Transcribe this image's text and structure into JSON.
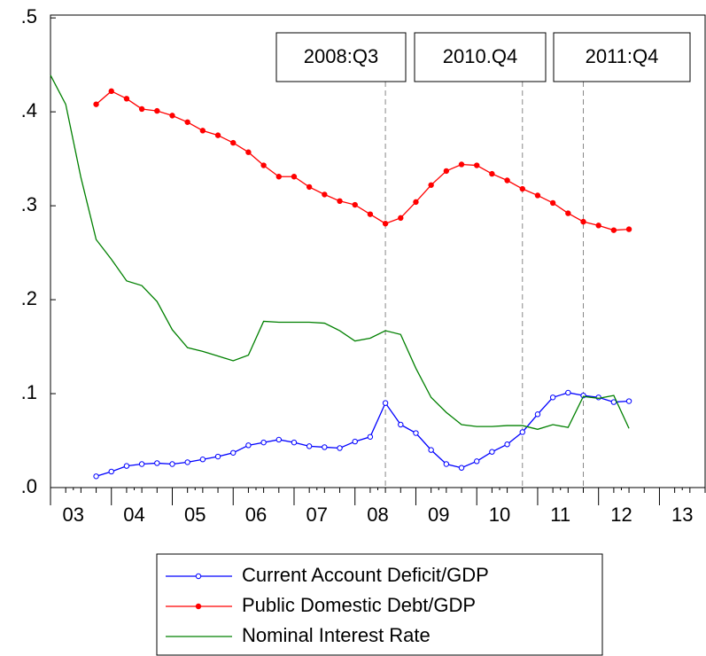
{
  "chart_data": {
    "type": "line",
    "x": [
      2003,
      2003.25,
      2003.5,
      2003.75,
      2004,
      2004.25,
      2004.5,
      2004.75,
      2005,
      2005.25,
      2005.5,
      2005.75,
      2006,
      2006.25,
      2006.5,
      2006.75,
      2007,
      2007.25,
      2007.5,
      2007.75,
      2008,
      2008.25,
      2008.5,
      2008.75,
      2009,
      2009.25,
      2009.5,
      2009.75,
      2010,
      2010.25,
      2010.5,
      2010.75,
      2011,
      2011.25,
      2011.5,
      2011.75,
      2012,
      2012.25,
      2012.5,
      2012.75
    ],
    "series": [
      {
        "name": "Current Account Deficit/GDP",
        "color": "#0000ff",
        "marker": "open",
        "values": [
          null,
          null,
          null,
          0.012,
          0.017,
          0.023,
          0.025,
          0.026,
          0.025,
          0.027,
          0.03,
          0.033,
          0.037,
          0.045,
          0.048,
          0.051,
          0.048,
          0.044,
          0.043,
          0.042,
          0.049,
          0.054,
          0.09,
          0.067,
          0.058,
          0.04,
          0.025,
          0.021,
          0.028,
          0.038,
          0.046,
          0.059,
          0.078,
          0.096,
          0.101,
          0.098,
          0.096,
          0.091,
          0.092,
          null
        ]
      },
      {
        "name": "Public Domestic Debt/GDP",
        "color": "#ff0000",
        "marker": "filled",
        "values": [
          null,
          null,
          null,
          0.408,
          0.422,
          0.414,
          0.403,
          0.401,
          0.396,
          0.389,
          0.38,
          0.375,
          0.367,
          0.357,
          0.343,
          0.331,
          0.331,
          0.32,
          0.312,
          0.305,
          0.301,
          0.291,
          0.281,
          0.287,
          0.304,
          0.322,
          0.337,
          0.344,
          0.343,
          0.334,
          0.327,
          0.318,
          0.311,
          0.303,
          0.292,
          0.283,
          0.279,
          0.274,
          0.275,
          null
        ]
      },
      {
        "name": "Nominal Interest Rate",
        "color": "#008000",
        "marker": "none",
        "values": [
          0.439,
          0.408,
          0.33,
          0.264,
          0.243,
          0.22,
          0.215,
          0.198,
          0.168,
          0.149,
          0.145,
          0.14,
          0.135,
          0.141,
          0.177,
          0.176,
          0.176,
          0.176,
          0.175,
          0.167,
          0.156,
          0.159,
          0.167,
          0.163,
          0.127,
          0.096,
          0.08,
          0.067,
          0.065,
          0.065,
          0.066,
          0.066,
          0.062,
          0.067,
          0.064,
          0.097,
          0.095,
          0.098,
          0.063,
          null
        ]
      }
    ],
    "xlim": [
      2003,
      2013.75
    ],
    "xticks": [
      {
        "value": 2003.375,
        "label": "03"
      },
      {
        "value": 2004.375,
        "label": "04"
      },
      {
        "value": 2005.375,
        "label": "05"
      },
      {
        "value": 2006.375,
        "label": "06"
      },
      {
        "value": 2007.375,
        "label": "07"
      },
      {
        "value": 2008.375,
        "label": "08"
      },
      {
        "value": 2009.375,
        "label": "09"
      },
      {
        "value": 2010.375,
        "label": "10"
      },
      {
        "value": 2011.375,
        "label": "11"
      },
      {
        "value": 2012.375,
        "label": "12"
      },
      {
        "value": 2013.375,
        "label": "13"
      }
    ],
    "ylim": [
      0,
      0.503
    ],
    "yticks": [
      {
        "value": 0,
        "label": ".0"
      },
      {
        "value": 0.1,
        "label": ".1"
      },
      {
        "value": 0.2,
        "label": ".2"
      },
      {
        "value": 0.3,
        "label": ".3"
      },
      {
        "value": 0.4,
        "label": ".4"
      },
      {
        "value": 0.5,
        "label": ".5"
      }
    ],
    "annotations": [
      {
        "x": 2008.5,
        "label": "2008:Q3"
      },
      {
        "x": 2010.75,
        "label": "2010.Q4"
      },
      {
        "x": 2011.75,
        "label": "2011:Q4"
      }
    ]
  }
}
